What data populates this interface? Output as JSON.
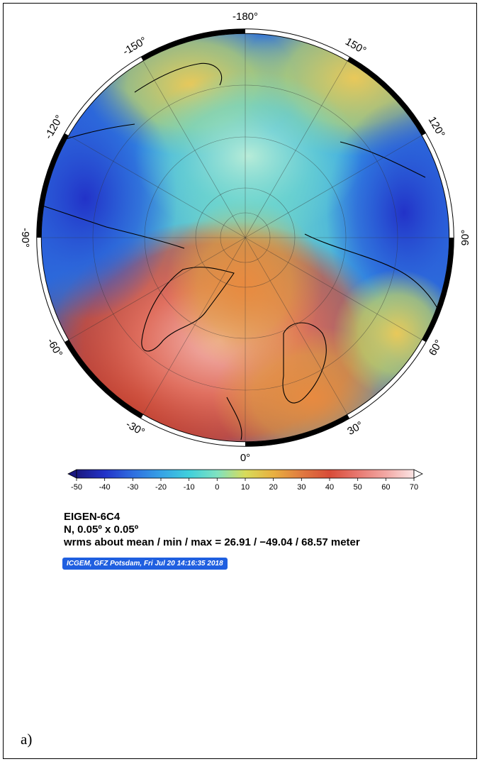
{
  "map": {
    "projection": "north polar stereographic",
    "longitude_labels": [
      {
        "text": "-180°",
        "lon": 180
      },
      {
        "text": "150°",
        "lon": 150
      },
      {
        "text": "120°",
        "lon": 120
      },
      {
        "text": "90°",
        "lon": 90
      },
      {
        "text": "60°",
        "lon": 60
      },
      {
        "text": "30°",
        "lon": 30
      },
      {
        "text": "0°",
        "lon": 0
      },
      {
        "text": "-30°",
        "lon": -30
      },
      {
        "text": "-60°",
        "lon": -60
      },
      {
        "text": "-90°",
        "lon": -90
      },
      {
        "text": "-120°",
        "lon": -120
      },
      {
        "text": "-150°",
        "lon": -150
      }
    ]
  },
  "colorbar": {
    "ticks": [
      "-50",
      "-40",
      "-30",
      "-20",
      "-10",
      "0",
      "10",
      "20",
      "30",
      "40",
      "50",
      "60",
      "70"
    ],
    "colors": [
      "#1a1780",
      "#2232c8",
      "#2f6ee0",
      "#36a2e6",
      "#3fd0dc",
      "#7fe2c0",
      "#d8dc5a",
      "#e8b040",
      "#e07a40",
      "#d84c38",
      "#e87870",
      "#f2a8a4",
      "#fbe4e4"
    ]
  },
  "caption": {
    "model": "EIGEN-6C4",
    "grid": "N, 0.05º x 0.05º",
    "stats": "wrms about mean / min / max = 26.91 / −49.04 / 68.57 meter"
  },
  "credit": "ICGEM, GFZ Potsdam, Fri Jul 20 14:16:35 2018",
  "panel_label": "a)"
}
